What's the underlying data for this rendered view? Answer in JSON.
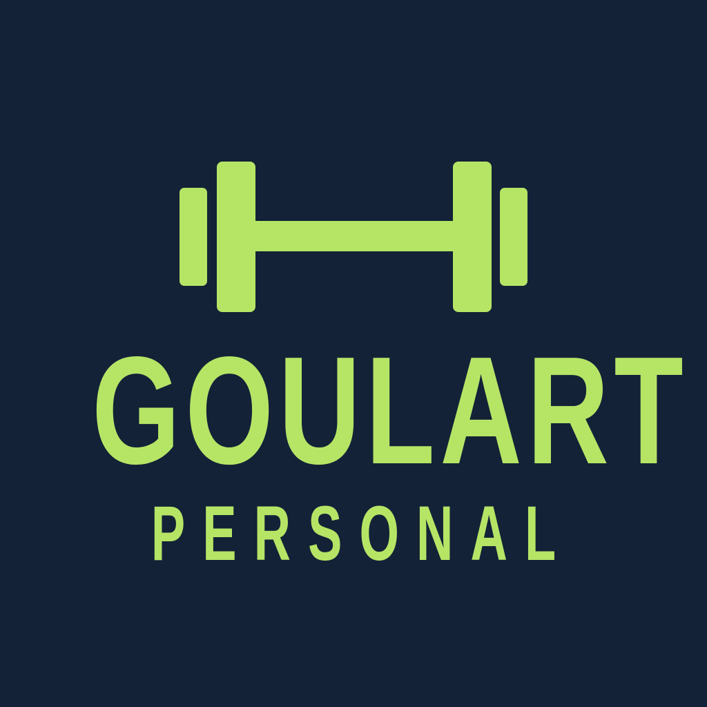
{
  "brand": {
    "name": "GOULART",
    "subtitle": "PERSONAL"
  },
  "colors": {
    "background": "#132237",
    "accent": "#b6e566"
  },
  "icons": {
    "emblem": "dumbbell-icon"
  }
}
